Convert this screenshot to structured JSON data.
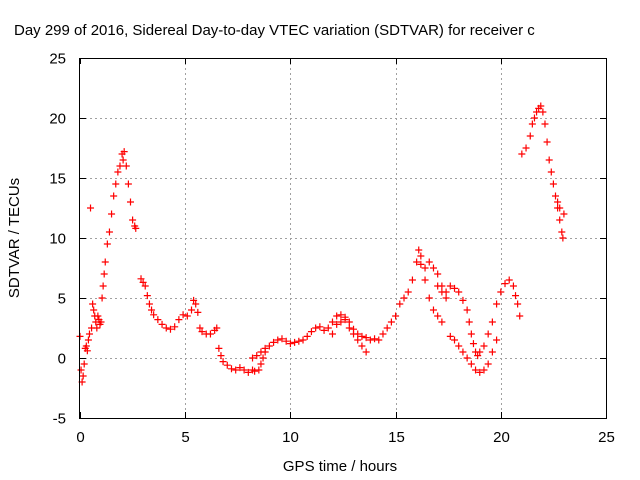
{
  "chart_data": {
    "type": "scatter",
    "title": "Day 299 of 2016, Sidereal Day-to-day VTEC variation (SDTVAR) for receiver c",
    "xlabel": "GPS time / hours",
    "ylabel": "SDTVAR / TECUs",
    "xlim": [
      0,
      25
    ],
    "ylim": [
      -5,
      25
    ],
    "x_ticks": [
      "0",
      "5",
      "10",
      "15",
      "20",
      "25"
    ],
    "y_ticks": [
      "-5",
      "0",
      "5",
      "10",
      "15",
      "20",
      "25"
    ],
    "grid": true,
    "marker": "plus",
    "series_color": "#ff0000",
    "series": [
      {
        "points": [
          [
            0.0,
            1.8
          ],
          [
            0.05,
            -1.0
          ],
          [
            0.1,
            -2.0
          ],
          [
            0.15,
            -1.5
          ],
          [
            0.2,
            -0.5
          ],
          [
            0.25,
            0.8
          ],
          [
            0.3,
            1.0
          ],
          [
            0.35,
            0.6
          ],
          [
            0.4,
            1.5
          ],
          [
            0.45,
            2.0
          ],
          [
            0.5,
            12.5
          ],
          [
            0.55,
            2.5
          ],
          [
            0.6,
            4.5
          ],
          [
            0.65,
            4.0
          ],
          [
            0.7,
            3.5
          ],
          [
            0.75,
            3.0
          ],
          [
            0.8,
            2.5
          ],
          [
            0.85,
            3.5
          ],
          [
            0.9,
            3.2
          ],
          [
            0.95,
            2.8
          ],
          [
            1.0,
            3.0
          ],
          [
            1.05,
            5.0
          ],
          [
            1.1,
            6.0
          ],
          [
            1.15,
            7.0
          ],
          [
            1.2,
            8.0
          ],
          [
            1.3,
            9.5
          ],
          [
            1.4,
            10.5
          ],
          [
            1.5,
            12.0
          ],
          [
            1.6,
            13.5
          ],
          [
            1.7,
            14.5
          ],
          [
            1.8,
            15.5
          ],
          [
            1.9,
            16.0
          ],
          [
            2.0,
            17.0
          ],
          [
            2.05,
            16.5
          ],
          [
            2.1,
            17.2
          ],
          [
            2.2,
            16.0
          ],
          [
            2.3,
            14.5
          ],
          [
            2.4,
            13.0
          ],
          [
            2.5,
            11.5
          ],
          [
            2.6,
            11.0
          ],
          [
            2.65,
            10.8
          ],
          [
            2.9,
            6.6
          ],
          [
            3.0,
            6.3
          ],
          [
            3.1,
            6.0
          ],
          [
            3.2,
            5.2
          ],
          [
            3.3,
            4.5
          ],
          [
            3.4,
            4.0
          ],
          [
            3.5,
            3.6
          ],
          [
            3.7,
            3.2
          ],
          [
            3.9,
            2.8
          ],
          [
            4.1,
            2.5
          ],
          [
            4.3,
            2.4
          ],
          [
            4.5,
            2.6
          ],
          [
            4.7,
            3.2
          ],
          [
            4.9,
            3.6
          ],
          [
            5.1,
            3.5
          ],
          [
            5.3,
            4.0
          ],
          [
            5.4,
            4.8
          ],
          [
            5.5,
            4.5
          ],
          [
            5.6,
            3.8
          ],
          [
            5.7,
            2.5
          ],
          [
            5.8,
            2.2
          ],
          [
            6.0,
            2.0
          ],
          [
            6.2,
            2.0
          ],
          [
            6.4,
            2.3
          ],
          [
            6.5,
            2.5
          ],
          [
            6.6,
            0.8
          ],
          [
            6.7,
            0.2
          ],
          [
            6.8,
            -0.3
          ],
          [
            7.0,
            -0.6
          ],
          [
            7.2,
            -0.9
          ],
          [
            7.4,
            -1.0
          ],
          [
            7.6,
            -0.8
          ],
          [
            7.8,
            -1.0
          ],
          [
            8.0,
            -1.2
          ],
          [
            8.2,
            -1.0
          ],
          [
            8.3,
            -1.1
          ],
          [
            8.5,
            -1.0
          ],
          [
            8.6,
            -0.5
          ],
          [
            8.7,
            0.0
          ],
          [
            8.8,
            0.5
          ],
          [
            9.0,
            1.0
          ],
          [
            9.2,
            1.3
          ],
          [
            9.4,
            1.5
          ],
          [
            9.6,
            1.6
          ],
          [
            9.8,
            1.4
          ],
          [
            10.0,
            1.2
          ],
          [
            10.2,
            1.3
          ],
          [
            10.4,
            1.4
          ],
          [
            10.6,
            1.5
          ],
          [
            10.8,
            1.8
          ],
          [
            11.0,
            2.2
          ],
          [
            11.2,
            2.5
          ],
          [
            11.4,
            2.6
          ],
          [
            11.6,
            2.3
          ],
          [
            11.8,
            2.5
          ],
          [
            12.0,
            3.0
          ],
          [
            12.2,
            3.5
          ],
          [
            12.4,
            3.6
          ],
          [
            12.6,
            3.2
          ],
          [
            12.8,
            2.5
          ],
          [
            13.0,
            2.0
          ],
          [
            13.2,
            1.5
          ],
          [
            13.4,
            1.0
          ],
          [
            13.6,
            0.5
          ],
          [
            8.2,
            0.0
          ],
          [
            8.4,
            0.2
          ],
          [
            8.6,
            0.5
          ],
          [
            8.8,
            0.8
          ],
          [
            12.0,
            2.0
          ],
          [
            12.2,
            2.8
          ],
          [
            12.4,
            3.0
          ],
          [
            12.6,
            3.4
          ],
          [
            12.8,
            3.0
          ],
          [
            13.0,
            2.4
          ],
          [
            13.2,
            2.0
          ],
          [
            13.4,
            1.8
          ],
          [
            13.6,
            1.7
          ],
          [
            13.8,
            1.5
          ],
          [
            14.0,
            1.6
          ],
          [
            14.2,
            1.5
          ],
          [
            14.4,
            2.0
          ],
          [
            14.6,
            2.5
          ],
          [
            14.8,
            3.0
          ],
          [
            15.0,
            3.5
          ],
          [
            15.2,
            4.5
          ],
          [
            15.4,
            5.0
          ],
          [
            15.6,
            5.5
          ],
          [
            15.8,
            6.5
          ],
          [
            16.0,
            8.0
          ],
          [
            16.1,
            9.0
          ],
          [
            16.2,
            8.5
          ],
          [
            16.4,
            7.5
          ],
          [
            16.6,
            8.0
          ],
          [
            16.8,
            7.5
          ],
          [
            17.0,
            7.0
          ],
          [
            17.2,
            6.0
          ],
          [
            17.4,
            5.5
          ],
          [
            17.6,
            6.0
          ],
          [
            17.8,
            5.8
          ],
          [
            18.0,
            5.5
          ],
          [
            18.2,
            4.8
          ],
          [
            18.4,
            4.0
          ],
          [
            18.5,
            3.0
          ],
          [
            18.6,
            2.0
          ],
          [
            18.7,
            1.2
          ],
          [
            18.8,
            0.5
          ],
          [
            18.9,
            0.2
          ],
          [
            19.0,
            0.5
          ],
          [
            19.2,
            1.0
          ],
          [
            19.4,
            2.0
          ],
          [
            19.6,
            3.0
          ],
          [
            19.8,
            4.5
          ],
          [
            20.0,
            5.5
          ],
          [
            20.2,
            6.2
          ],
          [
            20.4,
            6.5
          ],
          [
            20.6,
            6.0
          ],
          [
            20.7,
            5.2
          ],
          [
            20.8,
            4.5
          ],
          [
            20.9,
            3.5
          ],
          [
            16.2,
            7.8
          ],
          [
            16.4,
            6.5
          ],
          [
            16.6,
            5.0
          ],
          [
            16.8,
            4.0
          ],
          [
            17.0,
            3.5
          ],
          [
            17.2,
            3.0
          ],
          [
            17.0,
            6.0
          ],
          [
            17.2,
            5.5
          ],
          [
            17.4,
            5.0
          ],
          [
            17.6,
            1.8
          ],
          [
            17.8,
            1.5
          ],
          [
            18.0,
            1.0
          ],
          [
            18.2,
            0.5
          ],
          [
            18.4,
            0.0
          ],
          [
            18.6,
            -0.5
          ],
          [
            18.8,
            -1.0
          ],
          [
            19.0,
            -1.2
          ],
          [
            19.2,
            -1.0
          ],
          [
            19.4,
            -0.5
          ],
          [
            19.6,
            0.5
          ],
          [
            19.8,
            1.5
          ],
          [
            21.0,
            17.0
          ],
          [
            21.2,
            17.5
          ],
          [
            21.4,
            18.5
          ],
          [
            21.5,
            19.5
          ],
          [
            21.6,
            20.0
          ],
          [
            21.7,
            20.5
          ],
          [
            21.8,
            20.8
          ],
          [
            21.9,
            21.0
          ],
          [
            22.0,
            20.5
          ],
          [
            22.1,
            19.5
          ],
          [
            22.2,
            18.0
          ],
          [
            22.3,
            16.5
          ],
          [
            22.4,
            15.5
          ],
          [
            22.5,
            14.5
          ],
          [
            22.6,
            13.5
          ],
          [
            22.7,
            12.5
          ],
          [
            22.8,
            11.5
          ],
          [
            22.9,
            10.5
          ],
          [
            22.95,
            10.0
          ],
          [
            23.0,
            12.0
          ],
          [
            22.8,
            12.5
          ],
          [
            22.7,
            13.0
          ]
        ]
      }
    ]
  }
}
